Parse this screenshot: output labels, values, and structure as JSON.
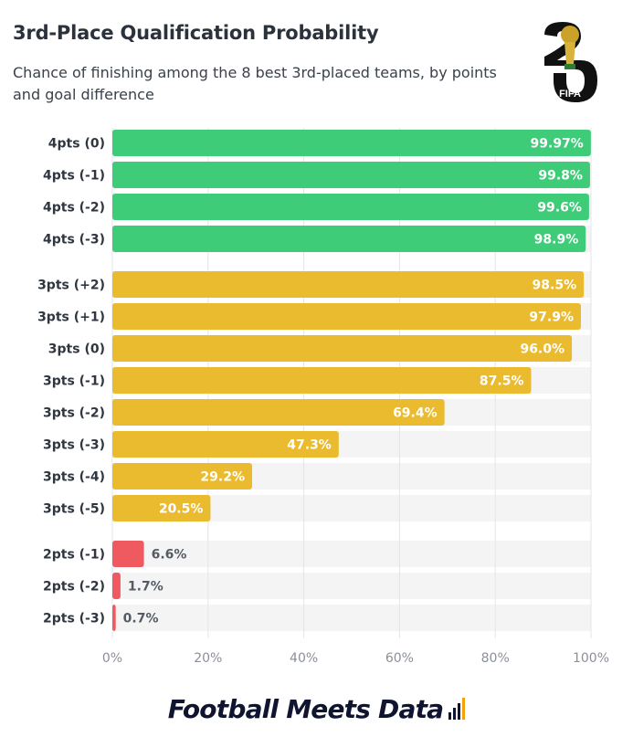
{
  "header": {
    "title": "3rd-Place Qualification Probability",
    "subtitle": "Chance of finishing among the 8 best 3rd-placed teams, by points and goal difference",
    "logo_text": "FIFA"
  },
  "footer": {
    "brand": "Football Meets Data"
  },
  "colors": {
    "four_points": "#3fcc78",
    "three_points": "#ebbb2f",
    "two_points": "#ee5a60",
    "track": "#f4f4f5",
    "axis_text": "#8a9099",
    "label_text": "#2f3640"
  },
  "chart_data": {
    "type": "bar",
    "orientation": "horizontal",
    "title": "3rd-Place Qualification Probability",
    "subtitle": "Chance of finishing among the 8 best 3rd-placed teams, by points and goal difference",
    "xlim": [
      0,
      100
    ],
    "x_ticks": [
      "0%",
      "20%",
      "40%",
      "60%",
      "80%",
      "100%"
    ],
    "grid": true,
    "categories": [
      "4pts (0)",
      "4pts (-1)",
      "4pts (-2)",
      "4pts (-3)",
      "3pts (+2)",
      "3pts (+1)",
      "3pts (0)",
      "3pts (-1)",
      "3pts (-2)",
      "3pts (-3)",
      "3pts (-4)",
      "3pts (-5)",
      "2pts (-1)",
      "2pts (-2)",
      "2pts (-3)"
    ],
    "values": [
      99.97,
      99.8,
      99.6,
      98.9,
      98.5,
      97.9,
      96.0,
      87.5,
      69.4,
      47.3,
      29.2,
      20.5,
      6.6,
      1.7,
      0.7
    ],
    "value_labels": [
      "99.97%",
      "99.8%",
      "99.6%",
      "98.9%",
      "98.5%",
      "97.9%",
      "96.0%",
      "87.5%",
      "69.4%",
      "47.3%",
      "29.2%",
      "20.5%",
      "6.6%",
      "1.7%",
      "0.7%"
    ],
    "groups": [
      4,
      4,
      4,
      4,
      3,
      3,
      3,
      3,
      3,
      3,
      3,
      3,
      2,
      2,
      2
    ]
  }
}
